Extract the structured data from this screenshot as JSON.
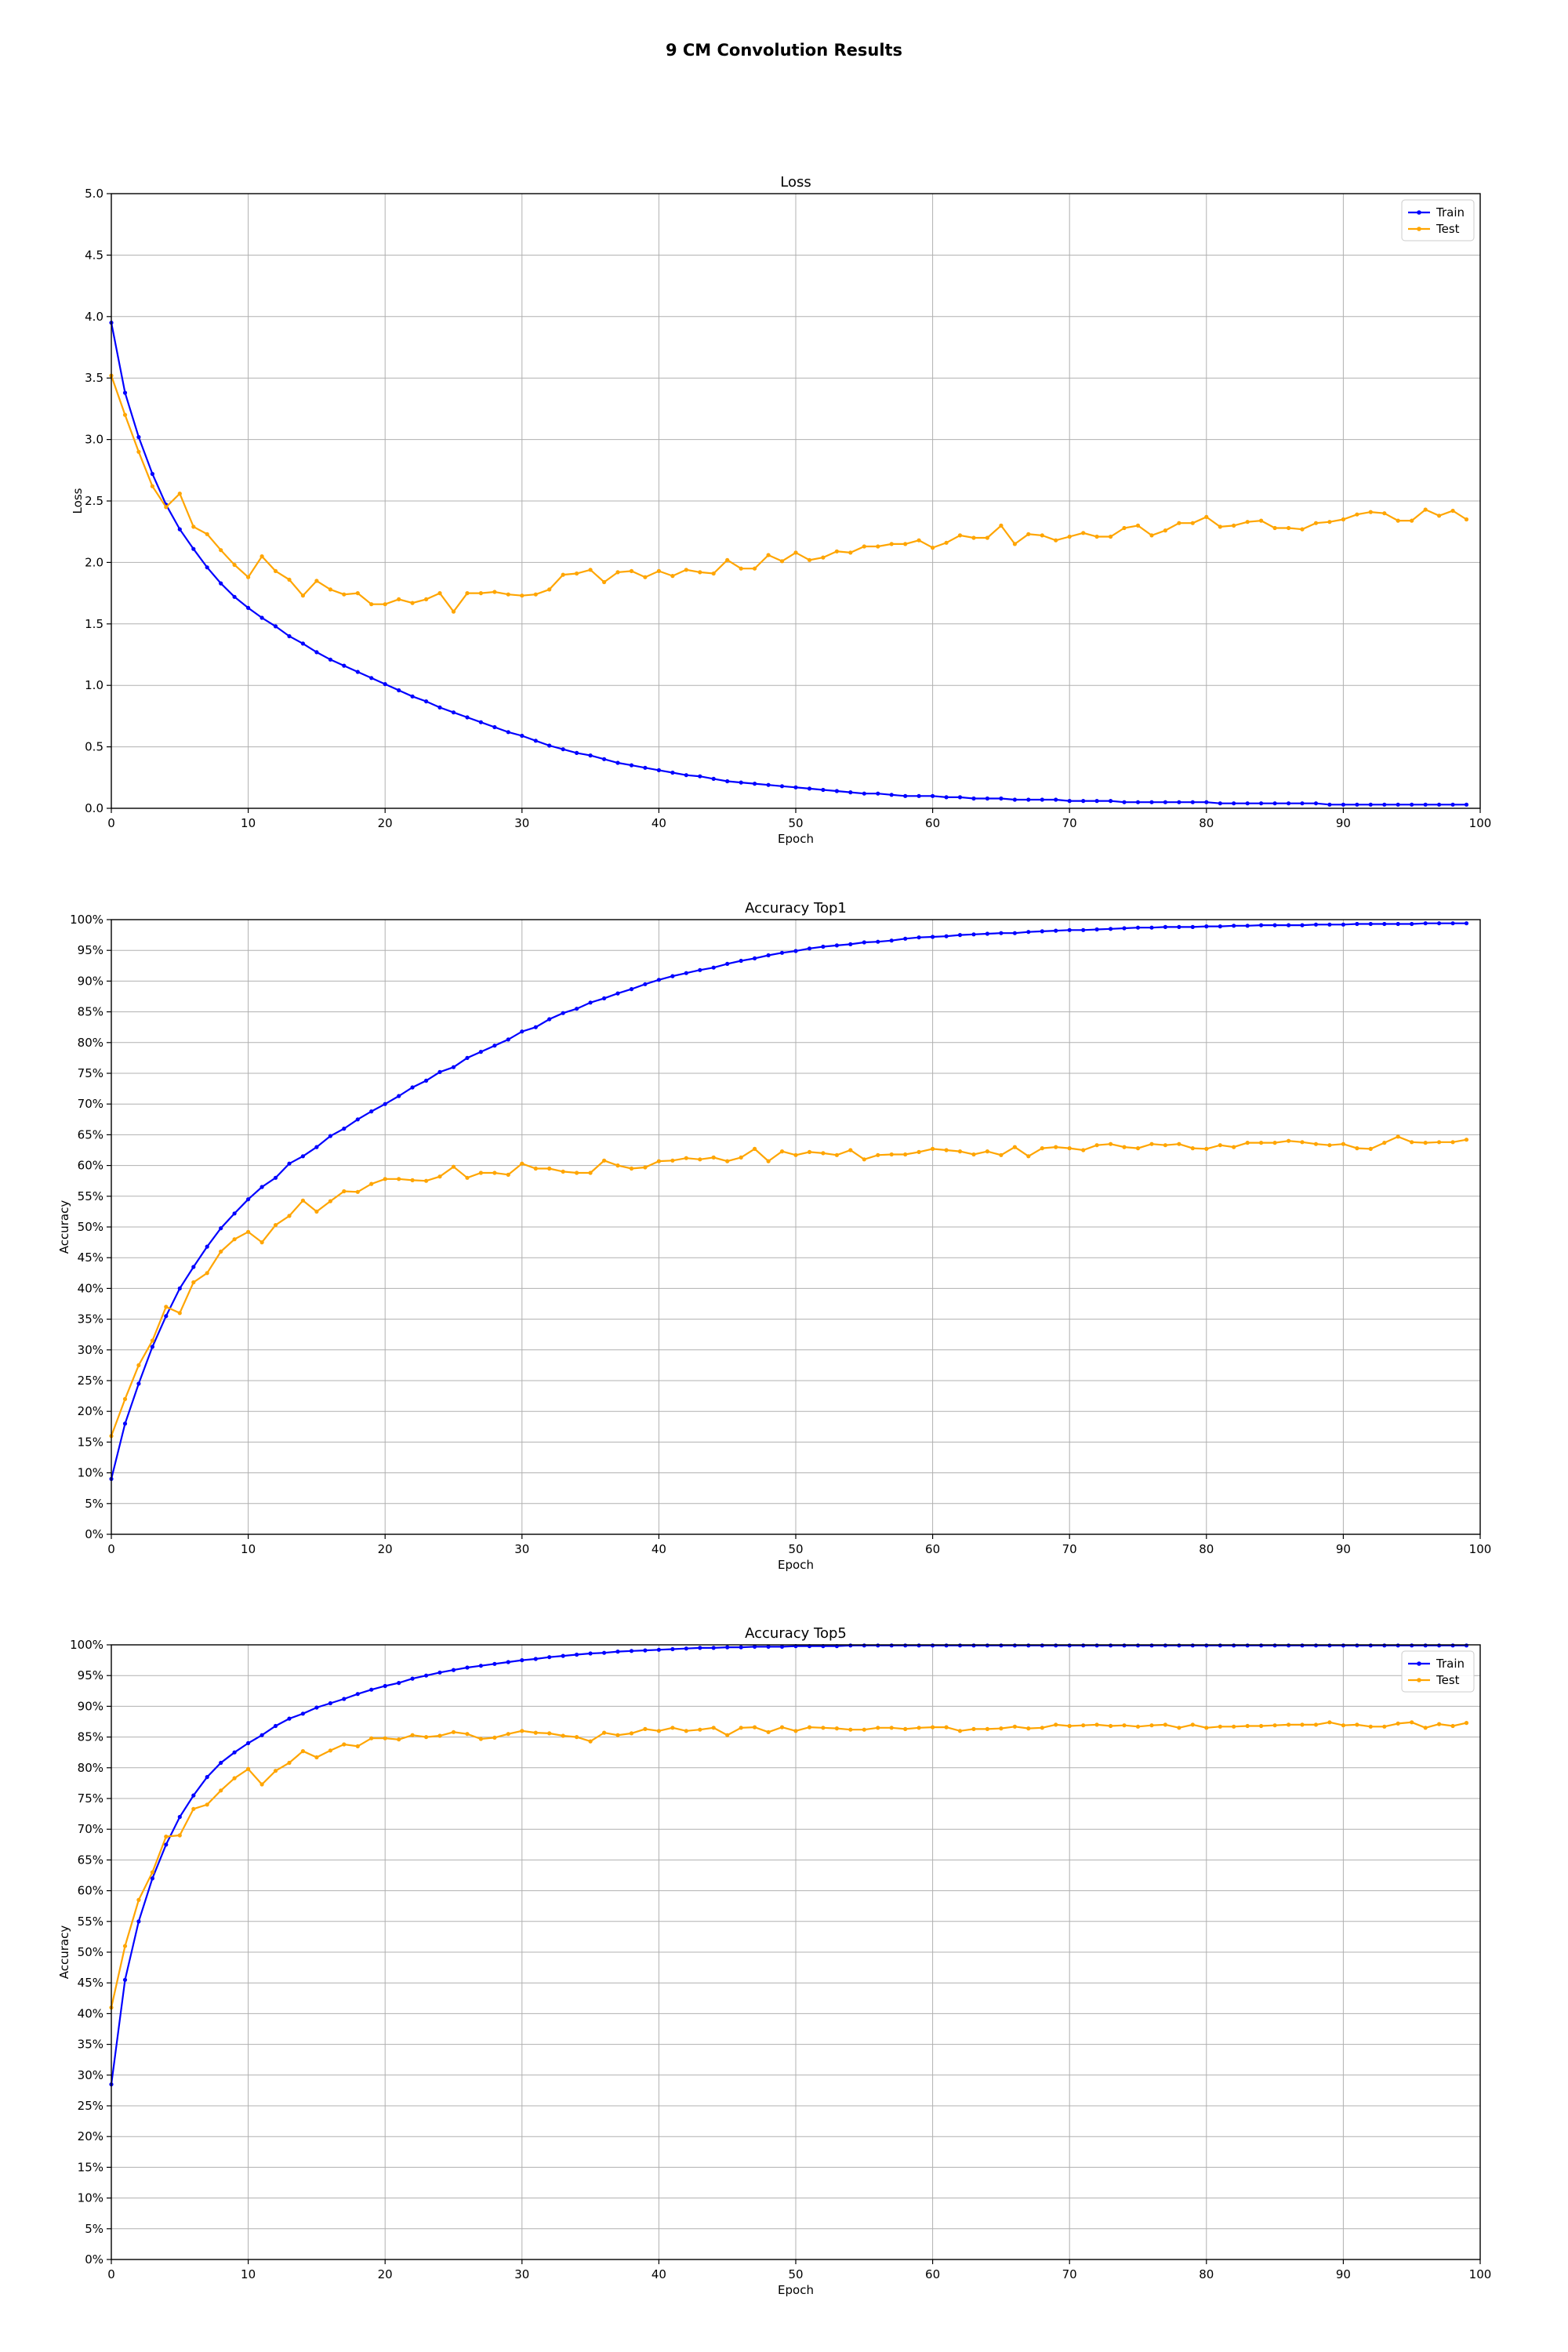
{
  "figure": {
    "title": "9 CM Convolution Results"
  },
  "colors": {
    "train": "#0000ff",
    "test": "#ffa500",
    "grid": "#b0b0b0"
  },
  "chart_data": [
    {
      "type": "line",
      "title": "Loss",
      "xlabel": "Epoch",
      "ylabel": "Loss",
      "xlim": [
        0,
        100
      ],
      "ylim": [
        0,
        5
      ],
      "xticks": [
        0,
        10,
        20,
        30,
        40,
        50,
        60,
        70,
        80,
        90,
        100
      ],
      "yticks": [
        0,
        0.5,
        1,
        1.5,
        2,
        2.5,
        3,
        3.5,
        4,
        4.5,
        5
      ],
      "ytick_labels": [
        "0.0",
        "0.5",
        "1.0",
        "1.5",
        "2.0",
        "2.5",
        "3.0",
        "3.5",
        "4.0",
        "4.5",
        "5.0"
      ],
      "grid": true,
      "legend": "upper right",
      "series": [
        {
          "name": "Train",
          "x_start": 0,
          "values": [
            3.95,
            3.38,
            3.02,
            2.72,
            2.47,
            2.27,
            2.11,
            1.96,
            1.83,
            1.72,
            1.63,
            1.55,
            1.48,
            1.4,
            1.34,
            1.27,
            1.21,
            1.16,
            1.11,
            1.06,
            1.01,
            0.96,
            0.91,
            0.87,
            0.82,
            0.78,
            0.74,
            0.7,
            0.66,
            0.62,
            0.59,
            0.55,
            0.51,
            0.48,
            0.45,
            0.43,
            0.4,
            0.37,
            0.35,
            0.33,
            0.31,
            0.29,
            0.27,
            0.26,
            0.24,
            0.22,
            0.21,
            0.2,
            0.19,
            0.18,
            0.17,
            0.16,
            0.15,
            0.14,
            0.13,
            0.12,
            0.12,
            0.11,
            0.1,
            0.1,
            0.1,
            0.09,
            0.09,
            0.08,
            0.08,
            0.08,
            0.07,
            0.07,
            0.07,
            0.07,
            0.06,
            0.06,
            0.06,
            0.06,
            0.05,
            0.05,
            0.05,
            0.05,
            0.05,
            0.05,
            0.05,
            0.04,
            0.04,
            0.04,
            0.04,
            0.04,
            0.04,
            0.04,
            0.04,
            0.03,
            0.03,
            0.03,
            0.03,
            0.03,
            0.03,
            0.03,
            0.03,
            0.03,
            0.03,
            0.03
          ]
        },
        {
          "name": "Test",
          "x_start": 0,
          "values": [
            3.52,
            3.2,
            2.9,
            2.62,
            2.45,
            2.56,
            2.29,
            2.23,
            2.1,
            1.98,
            1.88,
            2.05,
            1.93,
            1.86,
            1.73,
            1.85,
            1.78,
            1.74,
            1.75,
            1.66,
            1.66,
            1.7,
            1.67,
            1.7,
            1.75,
            1.6,
            1.75,
            1.75,
            1.76,
            1.74,
            1.73,
            1.74,
            1.78,
            1.9,
            1.91,
            1.94,
            1.84,
            1.92,
            1.93,
            1.88,
            1.93,
            1.89,
            1.94,
            1.92,
            1.91,
            2.02,
            1.95,
            1.95,
            2.06,
            2.01,
            2.08,
            2.02,
            2.04,
            2.09,
            2.08,
            2.13,
            2.13,
            2.15,
            2.15,
            2.18,
            2.12,
            2.16,
            2.22,
            2.2,
            2.2,
            2.3,
            2.15,
            2.23,
            2.22,
            2.18,
            2.21,
            2.24,
            2.21,
            2.21,
            2.28,
            2.3,
            2.22,
            2.26,
            2.32,
            2.32,
            2.37,
            2.29,
            2.3,
            2.33,
            2.34,
            2.28,
            2.28,
            2.27,
            2.32,
            2.33,
            2.35,
            2.39,
            2.41,
            2.4,
            2.34,
            2.34,
            2.43,
            2.38,
            2.42,
            2.35
          ]
        }
      ]
    },
    {
      "type": "line",
      "title": "Accuracy Top1",
      "xlabel": "Epoch",
      "ylabel": "Accuracy",
      "xlim": [
        0,
        100
      ],
      "ylim": [
        0,
        100
      ],
      "xticks": [
        0,
        10,
        20,
        30,
        40,
        50,
        60,
        70,
        80,
        90,
        100
      ],
      "yticks": [
        0,
        5,
        10,
        15,
        20,
        25,
        30,
        35,
        40,
        45,
        50,
        55,
        60,
        65,
        70,
        75,
        80,
        85,
        90,
        95,
        100
      ],
      "ytick_labels": [
        "0%",
        "5%",
        "10%",
        "15%",
        "20%",
        "25%",
        "30%",
        "35%",
        "40%",
        "45%",
        "50%",
        "55%",
        "60%",
        "65%",
        "70%",
        "75%",
        "80%",
        "85%",
        "90%",
        "95%",
        "100%"
      ],
      "grid": true,
      "legend": "none",
      "series": [
        {
          "name": "Train",
          "x_start": 0,
          "values": [
            9.0,
            18.0,
            24.5,
            30.5,
            35.5,
            40.0,
            43.5,
            46.8,
            49.8,
            52.2,
            54.5,
            56.5,
            58.0,
            60.3,
            61.5,
            63.0,
            64.8,
            66.0,
            67.5,
            68.8,
            70.0,
            71.3,
            72.7,
            73.8,
            75.2,
            76.0,
            77.5,
            78.5,
            79.5,
            80.5,
            81.8,
            82.5,
            83.8,
            84.8,
            85.5,
            86.5,
            87.2,
            88.0,
            88.7,
            89.5,
            90.2,
            90.8,
            91.3,
            91.8,
            92.2,
            92.8,
            93.3,
            93.7,
            94.2,
            94.6,
            94.9,
            95.3,
            95.6,
            95.8,
            96.0,
            96.3,
            96.4,
            96.6,
            96.9,
            97.1,
            97.2,
            97.3,
            97.5,
            97.6,
            97.7,
            97.8,
            97.8,
            98.0,
            98.1,
            98.2,
            98.3,
            98.3,
            98.4,
            98.5,
            98.6,
            98.7,
            98.7,
            98.8,
            98.8,
            98.8,
            98.9,
            98.9,
            99.0,
            99.0,
            99.1,
            99.1,
            99.1,
            99.1,
            99.2,
            99.2,
            99.2,
            99.3,
            99.3,
            99.3,
            99.3,
            99.3,
            99.4,
            99.4,
            99.4,
            99.4
          ]
        },
        {
          "name": "Test",
          "x_start": 0,
          "values": [
            16.0,
            22.0,
            27.5,
            31.5,
            37.0,
            36.0,
            41.0,
            42.5,
            46.0,
            48.0,
            49.2,
            47.5,
            50.3,
            51.8,
            54.3,
            52.5,
            54.2,
            55.8,
            55.7,
            57.0,
            57.8,
            57.8,
            57.6,
            57.5,
            58.2,
            59.8,
            58.0,
            58.8,
            58.8,
            58.5,
            60.3,
            59.5,
            59.5,
            59.0,
            58.8,
            58.8,
            60.8,
            60.0,
            59.5,
            59.7,
            60.7,
            60.8,
            61.2,
            61.0,
            61.3,
            60.7,
            61.3,
            62.7,
            60.7,
            62.3,
            61.7,
            62.2,
            62.0,
            61.7,
            62.5,
            61.0,
            61.7,
            61.8,
            61.8,
            62.2,
            62.7,
            62.5,
            62.3,
            61.8,
            62.3,
            61.7,
            63.0,
            61.5,
            62.8,
            63.0,
            62.8,
            62.5,
            63.3,
            63.5,
            63.0,
            62.8,
            63.5,
            63.3,
            63.5,
            62.8,
            62.7,
            63.3,
            63.0,
            63.7,
            63.7,
            63.7,
            64.0,
            63.8,
            63.5,
            63.3,
            63.5,
            62.8,
            62.7,
            63.7,
            64.7,
            63.8,
            63.7,
            63.8,
            63.8,
            64.2
          ]
        }
      ]
    },
    {
      "type": "line",
      "title": "Accuracy Top5",
      "xlabel": "Epoch",
      "ylabel": "Accuracy",
      "xlim": [
        0,
        100
      ],
      "ylim": [
        0,
        100
      ],
      "xticks": [
        0,
        10,
        20,
        30,
        40,
        50,
        60,
        70,
        80,
        90,
        100
      ],
      "yticks": [
        0,
        5,
        10,
        15,
        20,
        25,
        30,
        35,
        40,
        45,
        50,
        55,
        60,
        65,
        70,
        75,
        80,
        85,
        90,
        95,
        100
      ],
      "ytick_labels": [
        "0%",
        "5%",
        "10%",
        "15%",
        "20%",
        "25%",
        "30%",
        "35%",
        "40%",
        "45%",
        "50%",
        "55%",
        "60%",
        "65%",
        "70%",
        "75%",
        "80%",
        "85%",
        "90%",
        "95%",
        "100%"
      ],
      "grid": true,
      "legend": "upper right",
      "series": [
        {
          "name": "Train",
          "x_start": 0,
          "values": [
            28.5,
            45.5,
            55.0,
            62.0,
            67.5,
            72.0,
            75.5,
            78.5,
            80.8,
            82.5,
            84.0,
            85.3,
            86.8,
            88.0,
            88.8,
            89.8,
            90.5,
            91.2,
            92.0,
            92.7,
            93.3,
            93.8,
            94.5,
            95.0,
            95.5,
            95.9,
            96.3,
            96.6,
            96.9,
            97.2,
            97.5,
            97.7,
            98.0,
            98.2,
            98.4,
            98.6,
            98.7,
            98.9,
            99.0,
            99.1,
            99.2,
            99.3,
            99.4,
            99.5,
            99.5,
            99.6,
            99.6,
            99.7,
            99.7,
            99.7,
            99.8,
            99.8,
            99.8,
            99.8,
            99.9,
            99.9,
            99.9,
            99.9,
            99.9,
            99.9,
            99.9,
            99.9,
            99.9,
            99.9,
            99.9,
            99.9,
            99.9,
            99.9,
            99.9,
            99.9,
            99.9,
            99.9,
            99.9,
            99.9,
            99.9,
            99.9,
            99.9,
            99.9,
            99.9,
            99.9,
            99.9,
            99.9,
            99.9,
            99.9,
            99.9,
            99.9,
            99.9,
            99.9,
            99.9,
            99.9,
            99.9,
            99.9,
            99.9,
            99.9,
            99.9,
            99.9,
            99.9,
            99.9,
            99.9,
            99.9
          ]
        },
        {
          "name": "Test",
          "x_start": 0,
          "values": [
            41.0,
            51.0,
            58.5,
            63.0,
            68.8,
            69.0,
            73.3,
            74.0,
            76.3,
            78.3,
            79.8,
            77.3,
            79.5,
            80.8,
            82.7,
            81.7,
            82.8,
            83.8,
            83.5,
            84.8,
            84.8,
            84.6,
            85.3,
            85.0,
            85.2,
            85.8,
            85.5,
            84.7,
            84.9,
            85.5,
            86.0,
            85.7,
            85.6,
            85.2,
            85.0,
            84.3,
            85.7,
            85.3,
            85.6,
            86.3,
            86.0,
            86.5,
            86.0,
            86.2,
            86.5,
            85.3,
            86.5,
            86.6,
            85.8,
            86.6,
            86.0,
            86.6,
            86.5,
            86.4,
            86.2,
            86.2,
            86.5,
            86.5,
            86.3,
            86.5,
            86.6,
            86.6,
            86.0,
            86.3,
            86.3,
            86.4,
            86.7,
            86.4,
            86.5,
            87.0,
            86.8,
            86.9,
            87.0,
            86.8,
            86.9,
            86.7,
            86.9,
            87.0,
            86.5,
            87.0,
            86.5,
            86.7,
            86.7,
            86.8,
            86.8,
            86.9,
            87.0,
            87.0,
            87.0,
            87.4,
            86.9,
            87.0,
            86.7,
            86.7,
            87.2,
            87.4,
            86.5,
            87.1,
            86.8,
            87.3
          ]
        }
      ]
    }
  ]
}
